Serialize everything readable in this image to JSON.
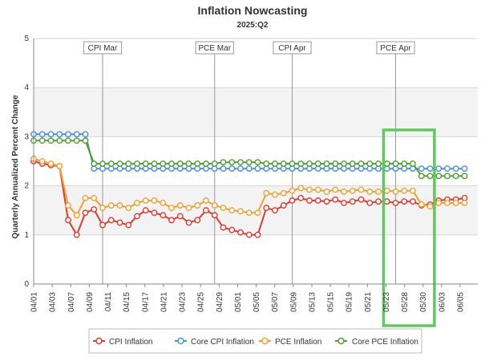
{
  "colors": {
    "cpi": "#e03a2f",
    "core_cpi": "#4a90d9",
    "pce": "#f0a030",
    "core_pce": "#4aa02c",
    "highlight": "#5ec95e"
  },
  "chart_data": {
    "type": "line",
    "title": "Inflation Nowcasting",
    "subtitle": "2025:Q2",
    "xlabel": "",
    "ylabel": "Quarterly Annualized Percent Change",
    "ylim": [
      0,
      5
    ],
    "yticks": [
      "0",
      "1",
      "2",
      "3",
      "4",
      "5"
    ],
    "grid": "horizontal",
    "legend_position": "bottom",
    "x_tick_labels": [
      "04/01",
      "04/03",
      "04/07",
      "04/09",
      "04/11",
      "04/15",
      "04/17",
      "04/21",
      "04/23",
      "04/25",
      "04/29",
      "05/01",
      "05/05",
      "05/07",
      "05/09",
      "05/13",
      "05/15",
      "05/19",
      "05/21",
      "05/23",
      "05/28",
      "05/30",
      "06/03",
      "06/05"
    ],
    "events": [
      {
        "label": "CPI Mar",
        "at_day": 8
      },
      {
        "label": "PCE Mar",
        "at_day": 21
      },
      {
        "label": "CPI Apr",
        "at_day": 30
      },
      {
        "label": "PCE Apr",
        "at_day": 42
      }
    ],
    "highlight_days": [
      40.6,
      46.5
    ],
    "series": [
      {
        "name": "CPI Inflation",
        "color_key": "cpi",
        "values": [
          2.5,
          2.45,
          2.42,
          2.4,
          1.3,
          1.0,
          1.45,
          1.52,
          1.2,
          1.3,
          1.25,
          1.2,
          1.38,
          1.5,
          1.45,
          1.4,
          1.3,
          1.38,
          1.25,
          1.3,
          1.5,
          1.4,
          1.15,
          1.1,
          1.05,
          1.0,
          1.0,
          1.55,
          1.5,
          1.6,
          1.7,
          1.75,
          1.7,
          1.7,
          1.68,
          1.72,
          1.65,
          1.68,
          1.72,
          1.65,
          1.68,
          1.68,
          1.65,
          1.68,
          1.68,
          1.6,
          1.62,
          1.7,
          1.72,
          1.72,
          1.75
        ]
      },
      {
        "name": "Core CPI Inflation",
        "color_key": "core_cpi",
        "values": [
          3.05,
          3.05,
          3.05,
          3.05,
          3.05,
          3.05,
          3.05,
          2.35,
          2.35,
          2.35,
          2.35,
          2.35,
          2.35,
          2.35,
          2.35,
          2.35,
          2.35,
          2.35,
          2.35,
          2.35,
          2.35,
          2.35,
          2.35,
          2.35,
          2.35,
          2.35,
          2.35,
          2.35,
          2.35,
          2.35,
          2.35,
          2.35,
          2.35,
          2.35,
          2.35,
          2.35,
          2.35,
          2.35,
          2.35,
          2.35,
          2.35,
          2.35,
          2.35,
          2.35,
          2.35,
          2.35,
          2.35,
          2.35,
          2.35,
          2.35,
          2.35
        ]
      },
      {
        "name": "PCE Inflation",
        "color_key": "pce",
        "values": [
          2.55,
          2.5,
          2.45,
          2.4,
          1.6,
          1.4,
          1.75,
          1.75,
          1.55,
          1.6,
          1.6,
          1.55,
          1.65,
          1.7,
          1.7,
          1.65,
          1.55,
          1.6,
          1.55,
          1.6,
          1.7,
          1.6,
          1.55,
          1.5,
          1.48,
          1.45,
          1.45,
          1.85,
          1.82,
          1.85,
          1.9,
          1.95,
          1.92,
          1.92,
          1.88,
          1.92,
          1.88,
          1.9,
          1.92,
          1.88,
          1.88,
          1.9,
          1.88,
          1.9,
          1.9,
          1.62,
          1.58,
          1.65,
          1.65,
          1.65,
          1.65
        ]
      },
      {
        "name": "Core PCE Inflation",
        "color_key": "core_pce",
        "values": [
          2.92,
          2.92,
          2.92,
          2.92,
          2.92,
          2.92,
          2.92,
          2.45,
          2.45,
          2.45,
          2.45,
          2.45,
          2.45,
          2.45,
          2.45,
          2.45,
          2.45,
          2.45,
          2.45,
          2.45,
          2.45,
          2.45,
          2.48,
          2.48,
          2.48,
          2.48,
          2.48,
          2.45,
          2.45,
          2.45,
          2.45,
          2.45,
          2.45,
          2.45,
          2.45,
          2.45,
          2.45,
          2.45,
          2.45,
          2.45,
          2.45,
          2.45,
          2.45,
          2.45,
          2.45,
          2.2,
          2.2,
          2.2,
          2.2,
          2.2,
          2.2
        ]
      }
    ]
  }
}
